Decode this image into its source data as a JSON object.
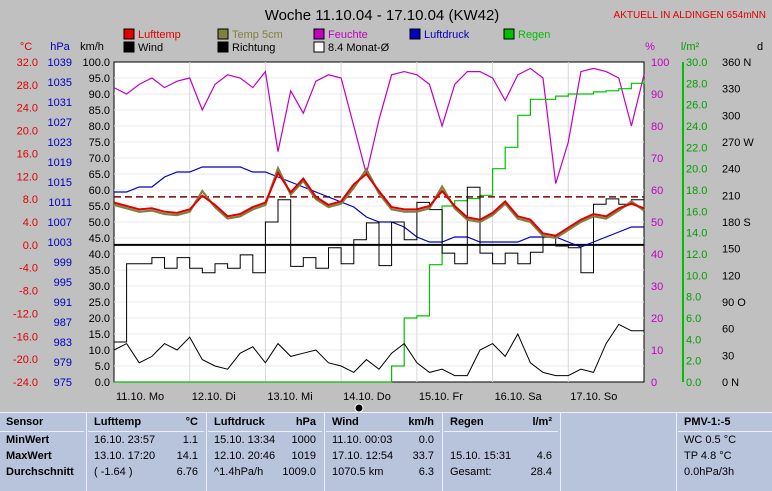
{
  "title": "Woche 11.10.04 - 17.10.04 (KW42)",
  "location_note": "AKTUELL IN ALDINGEN 654mNN",
  "chart_data": {
    "type": "line",
    "axes": {
      "temp": {
        "unit": "°C",
        "min": -24,
        "max": 32,
        "ticks": [
          "32.0",
          "28.0",
          "24.0",
          "20.0",
          "16.0",
          "12.0",
          "8.0",
          "4.0",
          "0.0",
          "-4.0",
          "-8.0",
          "-12.0",
          "-16.0",
          "-20.0",
          "-24.0"
        ],
        "color": "#e00000"
      },
      "pressure": {
        "unit": "hPa",
        "min": 975,
        "max": 1039,
        "ticks": [
          "1039",
          "1035",
          "1031",
          "1027",
          "1023",
          "1019",
          "1015",
          "1011",
          "1007",
          "1003",
          "999",
          "995",
          "991",
          "987",
          "983",
          "979",
          "975"
        ],
        "color": "#0000c0"
      },
      "wind": {
        "unit": "km/h",
        "min": 0,
        "max": 100,
        "ticks": [
          "100.0",
          "95.0",
          "90.0",
          "85.0",
          "80.0",
          "75.0",
          "70.0",
          "65.0",
          "60.0",
          "55.0",
          "50.0",
          "45.0",
          "40.0",
          "35.0",
          "30.0",
          "25.0",
          "20.0",
          "15.0",
          "10.0",
          "5.0",
          "0.0"
        ],
        "color": "#000000"
      },
      "humidity": {
        "unit": "%",
        "min": 0,
        "max": 100,
        "ticks": [
          "100",
          "90",
          "80",
          "70",
          "60",
          "50",
          "40",
          "30",
          "20",
          "10",
          "0"
        ],
        "color": "#c000c0"
      },
      "rain": {
        "unit": "l/m²",
        "min": 0,
        "max": 30,
        "ticks": [
          "30.0",
          "28.0",
          "26.0",
          "24.0",
          "22.0",
          "20.0",
          "18.0",
          "16.0",
          "14.0",
          "12.0",
          "10.0",
          "8.0",
          "6.0",
          "4.0",
          "2.0",
          "0.0"
        ],
        "color": "#00a000"
      },
      "direction": {
        "unit": "d",
        "min": 0,
        "max": 360,
        "ticks": [
          "360 N",
          "330",
          "300",
          "270 W",
          "240",
          "210",
          "180 S",
          "150",
          "120",
          "90 O",
          "60",
          "30",
          "0 N"
        ],
        "color": "#000000"
      }
    },
    "x_labels": [
      "11.10. Mo",
      "12.10. Di",
      "13.10. Mi",
      "14.10. Do",
      "15.10. Fr",
      "16.10. Sa",
      "17.10. So"
    ],
    "legend": [
      {
        "name": "Lufttemp",
        "color": "#e00000"
      },
      {
        "name": "Temp 5cm",
        "color": "#808040"
      },
      {
        "name": "Feuchte",
        "color": "#c000c0"
      },
      {
        "name": "Luftdruck",
        "color": "#0000c0"
      },
      {
        "name": "Regen",
        "color": "#00c000"
      },
      {
        "name": "Wind",
        "color": "#000000"
      },
      {
        "name": "Richtung",
        "color": "#000000"
      },
      {
        "name": "8.4 Monat-Ø",
        "color": "#ffffff"
      }
    ],
    "month_avg_temp": 8.4,
    "series": [
      {
        "name": "Lufttemp",
        "axis": "temp",
        "values": [
          7.4,
          6.8,
          6.2,
          6.4,
          5.8,
          5.6,
          6.2,
          8.6,
          7.0,
          5.0,
          5.4,
          6.6,
          7.4,
          12.6,
          9.2,
          11.6,
          8.4,
          7.0,
          7.6,
          10.6,
          12.4,
          9.4,
          6.6,
          6.2,
          6.2,
          6.8,
          9.4,
          6.8,
          4.8,
          4.4,
          5.6,
          7.6,
          5.0,
          4.4,
          2.0,
          1.6,
          3.0,
          4.4,
          5.4,
          5.0,
          6.4,
          7.2,
          6.4
        ]
      },
      {
        "name": "Temp 5cm",
        "axis": "temp",
        "values": [
          7.0,
          6.4,
          5.8,
          6.0,
          5.4,
          5.2,
          5.8,
          9.4,
          6.6,
          4.6,
          5.0,
          6.2,
          7.0,
          13.4,
          8.8,
          11.2,
          8.0,
          6.6,
          7.2,
          10.0,
          13.2,
          9.0,
          6.2,
          5.8,
          5.8,
          6.4,
          10.2,
          6.4,
          4.4,
          4.0,
          5.2,
          7.2,
          4.6,
          4.0,
          1.6,
          1.2,
          2.6,
          4.0,
          5.0,
          4.6,
          6.0,
          7.6,
          6.0
        ]
      },
      {
        "name": "Luftdruck",
        "axis": "pressure",
        "values": [
          1013,
          1013,
          1014,
          1014,
          1016,
          1017,
          1017,
          1018,
          1018,
          1018,
          1018,
          1017,
          1017,
          1016,
          1015,
          1014,
          1013,
          1012,
          1011,
          1010,
          1008,
          1007,
          1007,
          1006,
          1004,
          1003,
          1003,
          1004,
          1004,
          1003,
          1003,
          1003,
          1003,
          1004,
          1004,
          1004,
          1003,
          1002,
          1003,
          1004,
          1005,
          1006,
          1006
        ]
      },
      {
        "name": "Feuchte",
        "axis": "humidity",
        "values": [
          92,
          90,
          93,
          95,
          92,
          94,
          95,
          85,
          93,
          96,
          95,
          92,
          97,
          72,
          91,
          84,
          94,
          96,
          95,
          80,
          65,
          82,
          96,
          97,
          96,
          93,
          80,
          93,
          97,
          97,
          95,
          88,
          96,
          98,
          95,
          62,
          75,
          97,
          98,
          97,
          95,
          80,
          96
        ]
      },
      {
        "name": "Regen",
        "axis": "rain",
        "values": [
          0,
          0,
          0,
          0,
          0,
          0,
          0,
          0,
          0,
          0,
          0,
          0,
          0,
          0,
          0,
          0,
          0,
          0,
          0,
          0,
          0,
          0,
          1.5,
          6.0,
          6.2,
          11.0,
          16.5,
          17.0,
          17.2,
          17.5,
          20.0,
          22.0,
          25.0,
          26.5,
          26.5,
          26.8,
          27.0,
          27.0,
          27.2,
          27.3,
          27.5,
          28.0,
          28.4
        ]
      },
      {
        "name": "Wind",
        "axis": "wind",
        "values": [
          10,
          12,
          6,
          8,
          12,
          10,
          14,
          7,
          5,
          4,
          9,
          11,
          6,
          12,
          8,
          9,
          10,
          6,
          5,
          3,
          7,
          4,
          9,
          12,
          6,
          3,
          4,
          2,
          2,
          10,
          12,
          8,
          15,
          6,
          3,
          2,
          2,
          4,
          3,
          12,
          18,
          16,
          16
        ]
      },
      {
        "name": "Richtung",
        "axis": "direction",
        "values": [
          45,
          133,
          133,
          140,
          128,
          140,
          128,
          123,
          133,
          128,
          143,
          123,
          180,
          205,
          130,
          140,
          128,
          151,
          133,
          160,
          179,
          131,
          180,
          160,
          202,
          194,
          145,
          133,
          219,
          145,
          133,
          145,
          133,
          146,
          163,
          153,
          151,
          123,
          200,
          206,
          200,
          205,
          188
        ]
      }
    ]
  },
  "table": {
    "sensor": {
      "header": "Sensor",
      "rows": [
        "MinWert",
        "MaxWert",
        "Durchschnitt"
      ]
    },
    "lufttemp": {
      "header": "Lufttemp",
      "unit": "°C",
      "rows": [
        [
          "16.10.  23:57",
          "1.1"
        ],
        [
          "13.10.  17:20",
          "14.1"
        ],
        [
          "( -1.64 )",
          "6.76"
        ]
      ]
    },
    "luftdruck": {
      "header": "Luftdruck",
      "unit": "hPa",
      "rows": [
        [
          "15.10.  13:34",
          "1000"
        ],
        [
          "12.10.  20:46",
          "1019"
        ],
        [
          "^1.4hPa/h",
          "1009.0"
        ]
      ]
    },
    "wind": {
      "header": "Wind",
      "unit": "km/h",
      "rows": [
        [
          "11.10.  00:03",
          "0.0"
        ],
        [
          "17.10.  12:54",
          "33.7"
        ],
        [
          "1070.5 km",
          "6.3"
        ]
      ]
    },
    "regen": {
      "header": "Regen",
      "unit": "l/m²",
      "rows": [
        [
          "",
          ""
        ],
        [
          "15.10.  15:31",
          "4.6"
        ],
        [
          "Gesamt:",
          "28.4"
        ]
      ]
    },
    "pmv": {
      "header": "PMV-1:-5",
      "rows": [
        "WC 0.5 °C",
        "TP 4.8 °C",
        "0.0hPa/3h"
      ]
    }
  }
}
